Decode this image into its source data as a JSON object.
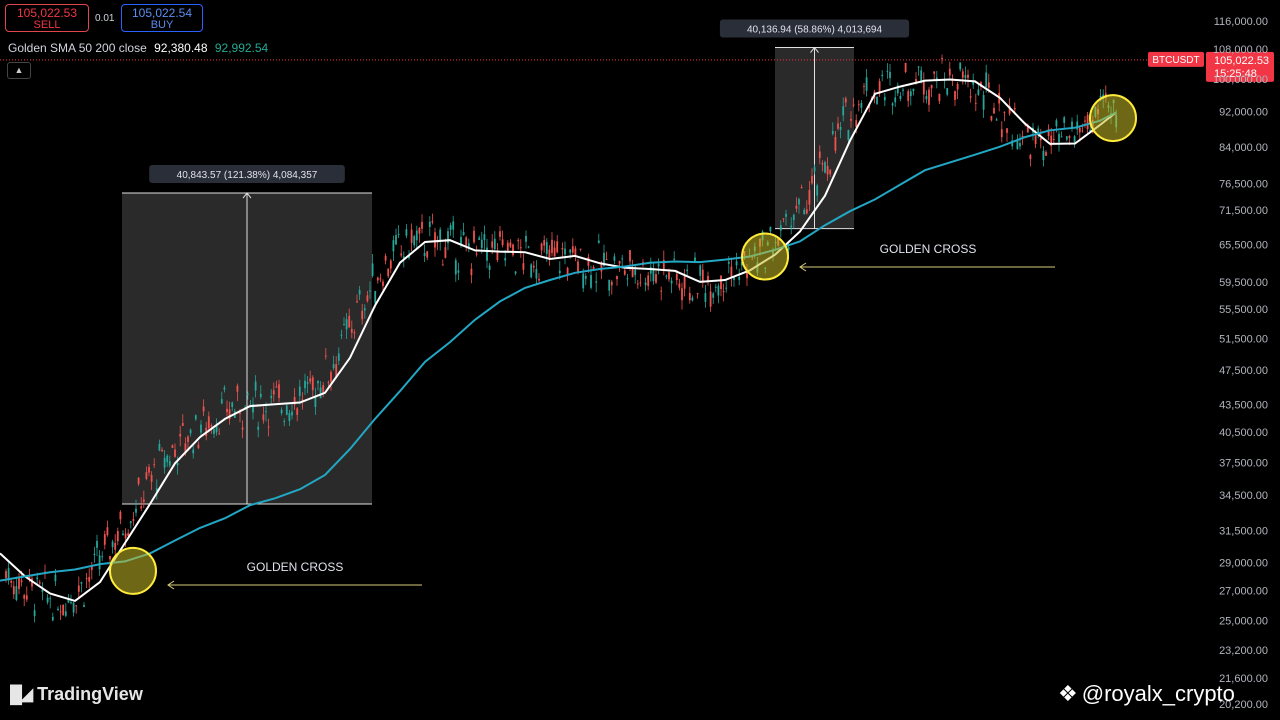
{
  "trade": {
    "sell_price": "105,022.53",
    "sell_label": "SELL",
    "spread": "0.01",
    "buy_price": "105,022.54",
    "buy_label": "BUY"
  },
  "legend": {
    "name": "Golden SMA 50 200 close",
    "sma_fast_value": "92,380.48",
    "sma_slow_value": "92,992.54"
  },
  "branding": {
    "platform": "TradingView",
    "handle": "@royalx_crypto"
  },
  "colors": {
    "up": "#26a69a",
    "down": "#ef5350",
    "sma_fast": "#ffffff",
    "sma_slow": "#22a7c4",
    "marker": "#ffeb3b",
    "price_tag": "#f23645"
  },
  "icons": {
    "collapse": "chevron-up-icon",
    "logo": "tradingview-logo-icon",
    "binance": "binance-logo-icon"
  },
  "chart_data": {
    "type": "line",
    "symbol": "BTCUSDT",
    "y_scale": "log",
    "ylim": [
      20200,
      119000
    ],
    "grid": false,
    "y_ticks": [
      "116,000.00",
      "108,000.00",
      "100,000.00",
      "92,000.00",
      "84,000.00",
      "76,500.00",
      "71,500.00",
      "65,500.00",
      "59,500.00",
      "55,500.00",
      "51,500.00",
      "47,500.00",
      "43,500.00",
      "40,500.00",
      "37,500.00",
      "34,500.00",
      "31,500.00",
      "29,000.00",
      "27,000.00",
      "25,000.00",
      "23,200.00",
      "21,600.00",
      "20,200.00"
    ],
    "current_price": {
      "label": "BTCUSDT",
      "price": "105,022.53",
      "countdown": "15:25:48",
      "value": 105022.53
    },
    "series": [
      {
        "name": "SMA 50",
        "x": [
          0,
          25,
          50,
          75,
          100,
          125,
          150,
          175,
          200,
          225,
          250,
          275,
          300,
          325,
          350,
          375,
          400,
          425,
          450,
          475,
          500,
          525,
          550,
          575,
          600,
          625,
          650,
          675,
          700,
          725,
          750,
          775,
          800,
          825,
          850,
          875,
          900,
          925,
          950,
          975,
          1000,
          1025,
          1050,
          1075,
          1100,
          1116
        ],
        "values": [
          29700,
          28000,
          26800,
          26300,
          27600,
          30500,
          33700,
          37400,
          40000,
          41900,
          43300,
          43500,
          43700,
          44800,
          49000,
          56000,
          62500,
          65900,
          66200,
          64500,
          64300,
          64200,
          63100,
          63600,
          62400,
          61700,
          61500,
          61200,
          59500,
          59800,
          61300,
          63800,
          67700,
          74200,
          85400,
          96300,
          98100,
          99600,
          99900,
          99400,
          95300,
          89200,
          84700,
          84800,
          88900,
          91800
        ]
      },
      {
        "name": "SMA 200",
        "x": [
          0,
          25,
          50,
          75,
          100,
          125,
          150,
          175,
          200,
          225,
          250,
          275,
          300,
          325,
          350,
          375,
          400,
          425,
          450,
          475,
          500,
          525,
          550,
          575,
          600,
          625,
          650,
          675,
          700,
          725,
          750,
          775,
          800,
          825,
          850,
          875,
          900,
          925,
          950,
          975,
          1000,
          1025,
          1050,
          1075,
          1100,
          1116
        ],
        "values": [
          27700,
          28000,
          28300,
          28500,
          28900,
          29100,
          29700,
          30700,
          31700,
          32500,
          33600,
          34200,
          35000,
          36300,
          38800,
          41900,
          45000,
          48500,
          51000,
          54000,
          56600,
          58600,
          59800,
          60900,
          61500,
          61900,
          62500,
          62700,
          62600,
          63000,
          63500,
          64600,
          66000,
          68800,
          71300,
          73500,
          76300,
          79200,
          80800,
          82400,
          84100,
          86200,
          87700,
          88300,
          89900,
          91800
        ]
      }
    ],
    "candles_note": "",
    "annotations": {
      "measure_1": {
        "label": "40,843.57 (121.38%) 4,084,357",
        "from": 33700,
        "to": 74700
      },
      "measure_2": {
        "label": "40,136.94 (58.86%) 4,013,694",
        "from": 68200,
        "to": 108400
      },
      "golden_cross_1": {
        "label": "GOLDEN CROSS",
        "x": 133,
        "y": 28400
      },
      "golden_cross_2": {
        "label": "GOLDEN CROSS",
        "x": 765,
        "y": 63500
      },
      "golden_cross_3": {
        "label": "",
        "x": 1113,
        "y": 90500
      }
    }
  }
}
